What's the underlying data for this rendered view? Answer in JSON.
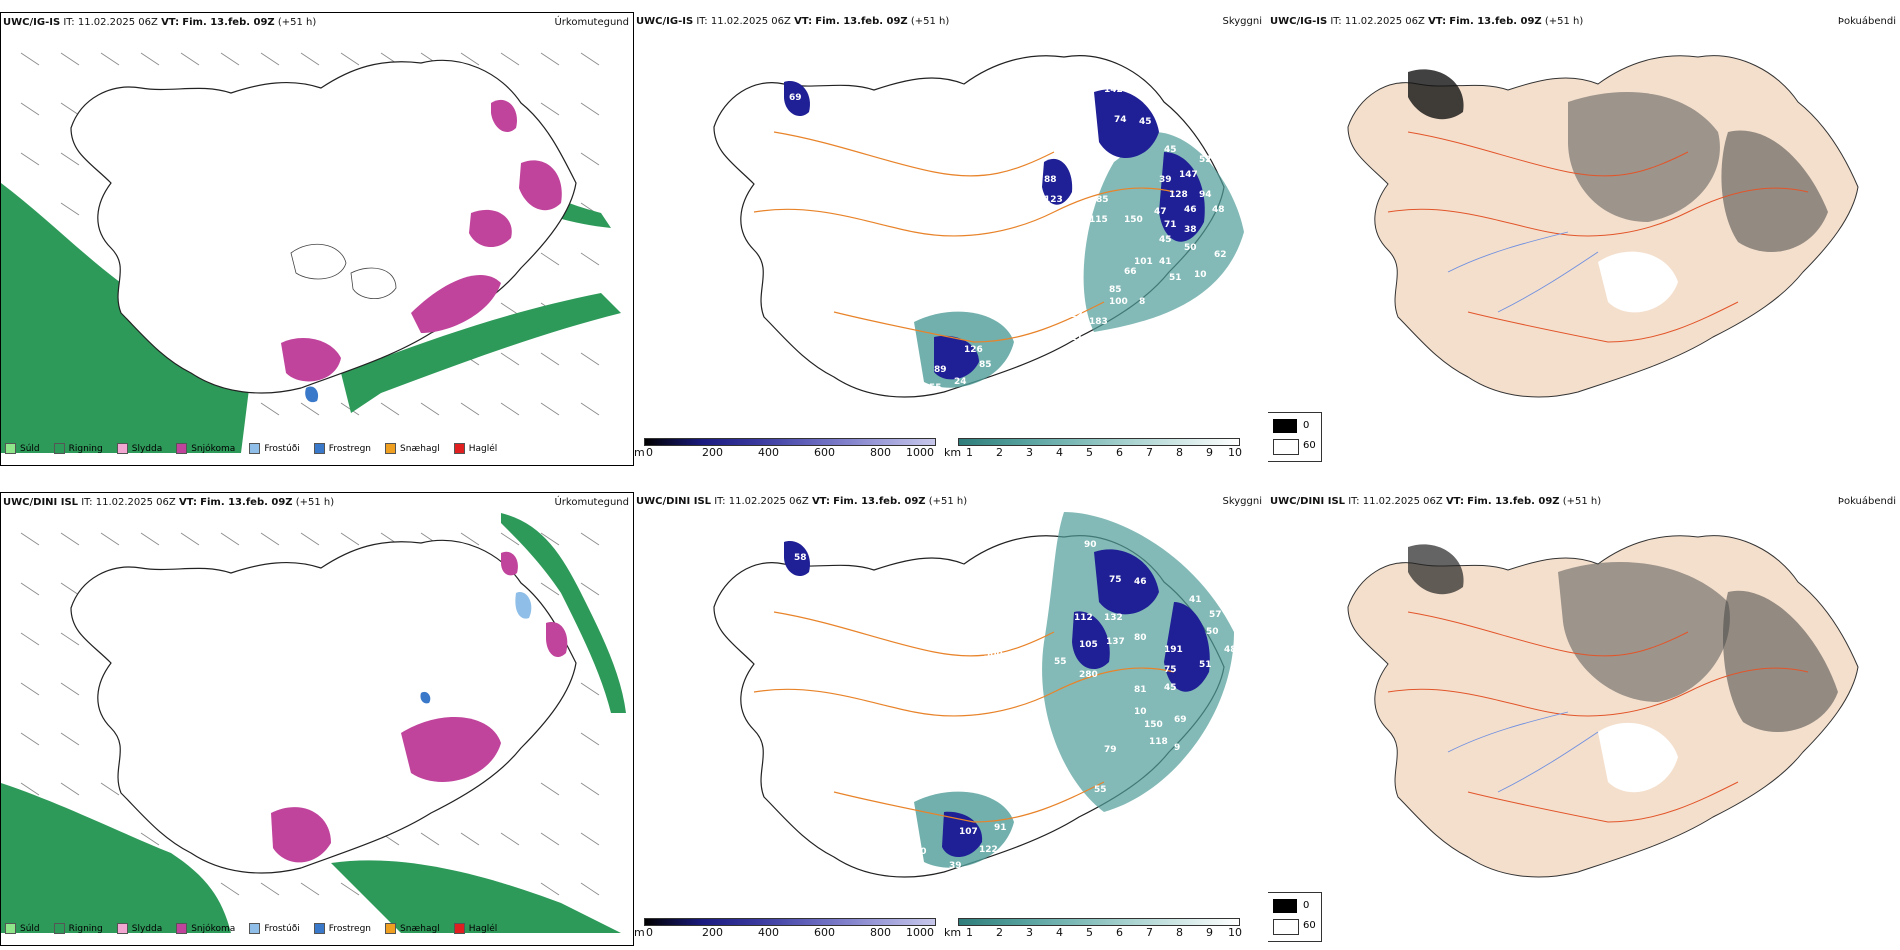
{
  "rows": [
    {
      "model": "UWC/IG-IS",
      "run": "IT: 11.02.2025 06Z",
      "valid_prefix": "VT:",
      "valid": "Fim. 13.feb. 09Z",
      "lead": "(+51 h)",
      "titles": [
        "Úrkomutegund",
        "Skyggni",
        "Þokuábendi"
      ],
      "vis_labels": [
        "69",
        "142",
        "74",
        "45",
        "90",
        "45",
        "52",
        "88",
        "108",
        "39",
        "147",
        "94",
        "123",
        "85",
        "128",
        "48",
        "115",
        "150",
        "46",
        "47",
        "53",
        "71",
        "38",
        "45",
        "101",
        "41",
        "50",
        "66",
        "51",
        "85",
        "100",
        "8",
        "112",
        "183",
        "111",
        "126",
        "85",
        "89",
        "55",
        "24",
        "10",
        "62"
      ]
    },
    {
      "model": "UWC/DINI ISL",
      "run": "IT: 11.02.2025 06Z",
      "valid_prefix": "VT:",
      "valid": "Fim. 13.feb. 09Z",
      "lead": "(+51 h)",
      "titles": [
        "Úrkomutegund",
        "Skyggni",
        "Þokuábendi"
      ],
      "vis_labels": [
        "58",
        "90",
        "75",
        "46",
        "41",
        "57",
        "50",
        "95",
        "112",
        "132",
        "80",
        "112",
        "48",
        "500",
        "105",
        "137",
        "191",
        "55",
        "51",
        "79",
        "280",
        "75",
        "45",
        "81",
        "10",
        "150",
        "69",
        "118",
        "79",
        "55",
        "9",
        "95",
        "107",
        "80",
        "122",
        "39",
        "54",
        "30",
        "91"
      ]
    }
  ],
  "precip_legend": [
    {
      "label": "Súld",
      "color": "#8fe68a"
    },
    {
      "label": "Rigning",
      "color": "#2e9a5a"
    },
    {
      "label": "Slydda",
      "color": "#f2a8d2"
    },
    {
      "label": "Snjókoma",
      "color": "#c0439c"
    },
    {
      "label": "Frostúði",
      "color": "#8fbfe8"
    },
    {
      "label": "Frostregn",
      "color": "#3a78c9"
    },
    {
      "label": "Snæhagl",
      "color": "#f0a020"
    },
    {
      "label": "Haglél",
      "color": "#e02020"
    }
  ],
  "height_scale": {
    "unit": "m",
    "ticks": [
      "0",
      "200",
      "400",
      "600",
      "800",
      "1000"
    ]
  },
  "vis_scale": {
    "unit": "km",
    "ticks": [
      "1",
      "2",
      "3",
      "4",
      "5",
      "6",
      "7",
      "8",
      "9",
      "10"
    ]
  },
  "fog_legend": {
    "dark": "0",
    "light": "60"
  },
  "colors": {
    "rain": "#2e9a5a",
    "snow": "#c0439c",
    "roads": "#e8832a",
    "coast": "#222222",
    "fog_land": "#f4dfcc",
    "vis_blue": "#1f1f96",
    "vis_teal": "#4f9c99"
  }
}
